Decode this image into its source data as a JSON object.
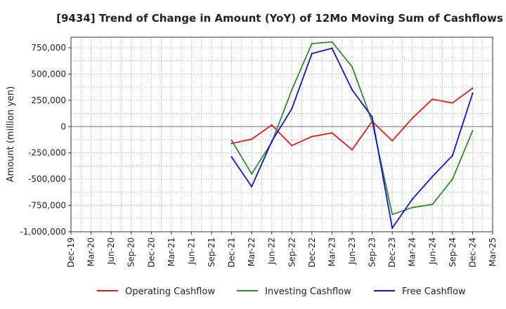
{
  "chart_data": {
    "type": "line",
    "title": "[9434]  Trend of Change in Amount (YoY) of 12Mo Moving Sum of Cashflows",
    "xlabel": "",
    "ylabel": "Amount (million yen)",
    "categories": [
      "Dec-19",
      "Mar-20",
      "Jun-20",
      "Sep-20",
      "Dec-20",
      "Mar-21",
      "Jun-21",
      "Sep-21",
      "Dec-21",
      "Mar-22",
      "Jun-22",
      "Sep-22",
      "Dec-22",
      "Mar-23",
      "Jun-23",
      "Sep-23",
      "Dec-23",
      "Mar-24",
      "Jun-24",
      "Sep-24",
      "Dec-24",
      "Mar-25"
    ],
    "ylim": [
      -1000000,
      850000
    ],
    "yticks": [
      -1000000,
      -750000,
      -500000,
      -250000,
      0,
      250000,
      500000,
      750000
    ],
    "ytick_labels": [
      "-1,000,000",
      "-750,000",
      "-500,000",
      "-250,000",
      "0",
      "250,000",
      "500,000",
      "750,000"
    ],
    "grid": true,
    "legend_position": "bottom",
    "series": [
      {
        "name": "Operating Cashflow",
        "color": "#e31a1c",
        "values": [
          null,
          null,
          null,
          null,
          null,
          null,
          null,
          null,
          -160000,
          -120000,
          15000,
          -180000,
          -95000,
          -60000,
          -220000,
          50000,
          -135000,
          80000,
          260000,
          225000,
          365000,
          null
        ]
      },
      {
        "name": "Investing Cashflow",
        "color": "#2e8b2e",
        "values": [
          null,
          null,
          null,
          null,
          null,
          null,
          null,
          null,
          -130000,
          -450000,
          -150000,
          350000,
          790000,
          805000,
          570000,
          45000,
          -835000,
          -770000,
          -740000,
          -500000,
          -40000,
          null
        ]
      },
      {
        "name": "Free Cashflow",
        "color": "#1010e0",
        "values": [
          null,
          null,
          null,
          null,
          null,
          null,
          null,
          null,
          -290000,
          -570000,
          -140000,
          170000,
          695000,
          745000,
          350000,
          90000,
          -965000,
          -690000,
          -475000,
          -275000,
          315000,
          null
        ]
      }
    ]
  }
}
